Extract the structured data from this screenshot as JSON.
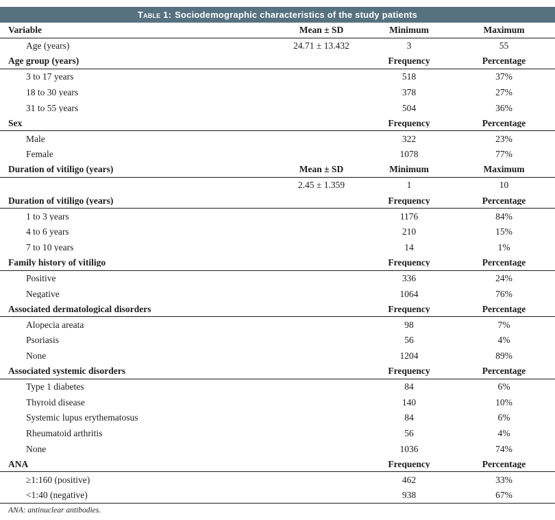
{
  "table": {
    "title_prefix": "Table 1:",
    "title_rest": "Sociodemographic characteristics of the study patients",
    "header_bar_color": "#567180",
    "rule_color": "#1c1c1c",
    "rows": [
      {
        "type": "section",
        "label": "Variable",
        "c1": "Mean ± SD",
        "c2": "Minimum",
        "c3": "Maximum"
      },
      {
        "type": "data",
        "label": "Age (years)",
        "c1": "24.71 ± 13.432",
        "c2": "3",
        "c3": "55"
      },
      {
        "type": "section",
        "label": "Age group (years)",
        "c1": "",
        "c2": "Frequency",
        "c3": "Percentage"
      },
      {
        "type": "data",
        "label": "3 to 17 years",
        "c1": "",
        "c2": "518",
        "c3": "37%"
      },
      {
        "type": "data",
        "label": "18 to 30 years",
        "c1": "",
        "c2": "378",
        "c3": "27%"
      },
      {
        "type": "data",
        "label": "31 to 55 years",
        "c1": "",
        "c2": "504",
        "c3": "36%"
      },
      {
        "type": "section",
        "label": "Sex",
        "c1": "",
        "c2": "Frequency",
        "c3": "Percentage"
      },
      {
        "type": "data",
        "label": "Male",
        "c1": "",
        "c2": "322",
        "c3": "23%"
      },
      {
        "type": "data",
        "label": "Female",
        "c1": "",
        "c2": "1078",
        "c3": "77%"
      },
      {
        "type": "section",
        "label": "Duration of vitiligo (years)",
        "c1": "Mean ± SD",
        "c2": "Minimum",
        "c3": "Maximum"
      },
      {
        "type": "data",
        "label": "",
        "c1": "2.45 ± 1.359",
        "c2": "1",
        "c3": "10"
      },
      {
        "type": "section",
        "label": "Duration of vitiligo (years)",
        "c1": "",
        "c2": "Frequency",
        "c3": "Percentage"
      },
      {
        "type": "data",
        "label": "1 to 3 years",
        "c1": "",
        "c2": "1176",
        "c3": "84%"
      },
      {
        "type": "data",
        "label": "4 to 6 years",
        "c1": "",
        "c2": "210",
        "c3": "15%"
      },
      {
        "type": "data",
        "label": "7 to 10 years",
        "c1": "",
        "c2": "14",
        "c3": "1%"
      },
      {
        "type": "section",
        "label": "Family history of vitiligo",
        "c1": "",
        "c2": "Frequency",
        "c3": "Percentage"
      },
      {
        "type": "data",
        "label": "Positive",
        "c1": "",
        "c2": "336",
        "c3": "24%"
      },
      {
        "type": "data",
        "label": "Negative",
        "c1": "",
        "c2": "1064",
        "c3": "76%"
      },
      {
        "type": "section",
        "label": "Associated dermatological disorders",
        "c1": "",
        "c2": "Frequency",
        "c3": "Percentage"
      },
      {
        "type": "data",
        "label": "Alopecia areata",
        "c1": "",
        "c2": "98",
        "c3": "7%"
      },
      {
        "type": "data",
        "label": "Psoriasis",
        "c1": "",
        "c2": "56",
        "c3": "4%"
      },
      {
        "type": "data",
        "label": "None",
        "c1": "",
        "c2": "1204",
        "c3": "89%"
      },
      {
        "type": "section",
        "label": "Associated systemic disorders",
        "c1": "",
        "c2": "Frequency",
        "c3": "Percentage"
      },
      {
        "type": "data",
        "label": "Type 1 diabetes",
        "c1": "",
        "c2": "84",
        "c3": "6%"
      },
      {
        "type": "data",
        "label": "Thyroid disease",
        "c1": "",
        "c2": "140",
        "c3": "10%"
      },
      {
        "type": "data",
        "label": "Systemic lupus erythematosus",
        "c1": "",
        "c2": "84",
        "c3": "6%"
      },
      {
        "type": "data",
        "label": "Rheumatoid arthritis",
        "c1": "",
        "c2": "56",
        "c3": "4%"
      },
      {
        "type": "data",
        "label": "None",
        "c1": "",
        "c2": "1036",
        "c3": "74%"
      },
      {
        "type": "section",
        "label": "ANA",
        "c1": "",
        "c2": "Frequency",
        "c3": "Percentage"
      },
      {
        "type": "data",
        "label": "≥1:160 (positive)",
        "c1": "",
        "c2": "462",
        "c3": "33%"
      },
      {
        "type": "data",
        "label": "<1:40 (negative)",
        "c1": "",
        "c2": "938",
        "c3": "67%"
      }
    ],
    "footnote": "ANA: antinuclear antibodies."
  }
}
